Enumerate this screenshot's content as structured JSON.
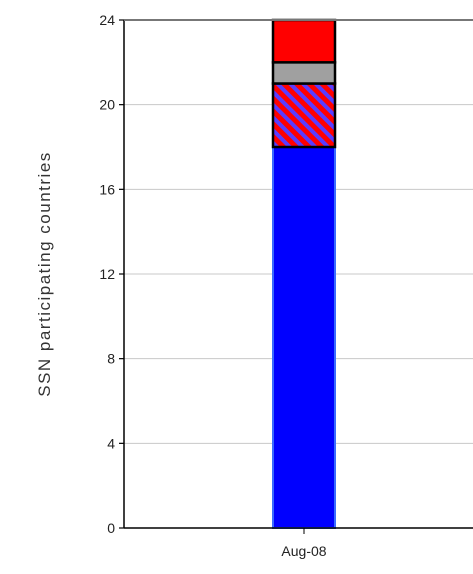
{
  "chart_data": {
    "type": "bar",
    "stacked": true,
    "categories": [
      "Aug-08"
    ],
    "series": [
      {
        "values": [
          18
        ],
        "color": "#0000ff",
        "pattern": "solid"
      },
      {
        "values": [
          3
        ],
        "color": "#ff0000",
        "pattern": "diagonal-hatch-blue"
      },
      {
        "values": [
          1
        ],
        "color": "#a0a0a0",
        "pattern": "solid"
      },
      {
        "values": [
          2
        ],
        "color": "#ff0000",
        "pattern": "solid"
      }
    ],
    "ylabel": "SSN participating countries",
    "yticks": [
      "0",
      "4",
      "8",
      "12",
      "16",
      "20",
      "24"
    ],
    "ylim": [
      0,
      24
    ],
    "grid": true
  }
}
